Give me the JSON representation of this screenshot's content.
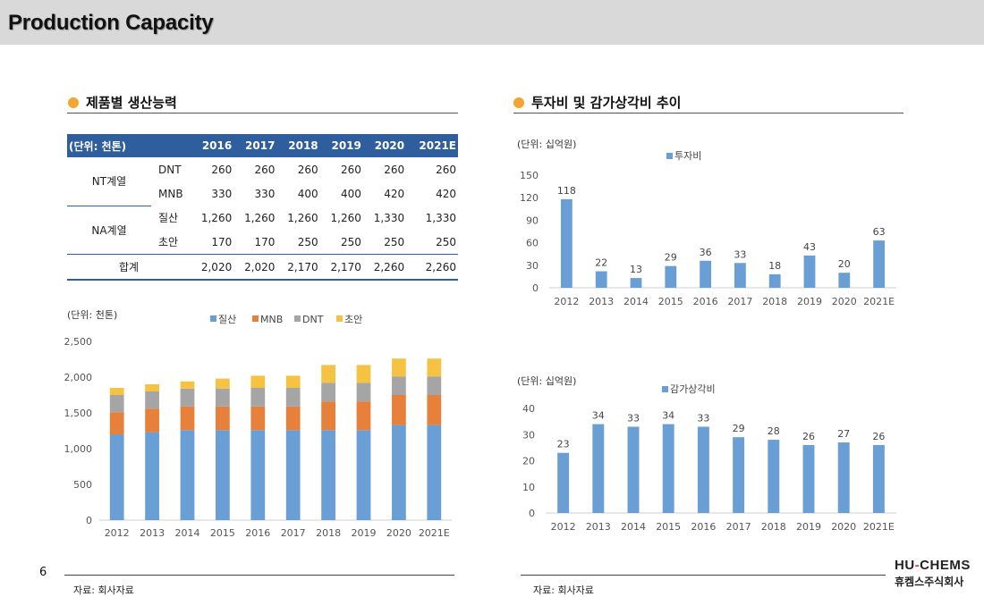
{
  "page": {
    "title": "Production Capacity",
    "page_number": "6",
    "source_left": "자료: 회사자료",
    "source_right": "자료: 회사자료",
    "logo_en_a": "HU",
    "logo_en_dash": "-",
    "logo_en_b": "CHEMS",
    "logo_ko": "휴켐스주식회사"
  },
  "left_section": {
    "heading": "제품별 생산능력"
  },
  "right_section": {
    "heading": "투자비 및 감가상각비 추이"
  },
  "colors": {
    "blue": "#6a9fd6",
    "orange": "#e7803a",
    "gray": "#a5a5a5",
    "yellow": "#f5c242",
    "header": "#2f5e9e",
    "bullet": "#f2a531"
  },
  "capacity_table": {
    "unit": "(단위: 천톤)",
    "years": [
      "2016",
      "2017",
      "2018",
      "2019",
      "2020",
      "2021E"
    ],
    "groups": [
      {
        "name": "NT계열",
        "rows": [
          {
            "product": "DNT",
            "values": [
              "260",
              "260",
              "260",
              "260",
              "260",
              "260"
            ]
          },
          {
            "product": "MNB",
            "values": [
              "330",
              "330",
              "400",
              "400",
              "420",
              "420"
            ]
          }
        ]
      },
      {
        "name": "NA계열",
        "rows": [
          {
            "product": "질산",
            "values": [
              "1,260",
              "1,260",
              "1,260",
              "1,260",
              "1,330",
              "1,330"
            ]
          },
          {
            "product": "초안",
            "values": [
              "170",
              "170",
              "250",
              "250",
              "250",
              "250"
            ]
          }
        ]
      }
    ],
    "total": {
      "label": "합계",
      "values": [
        "2,020",
        "2,020",
        "2,170",
        "2,170",
        "2,260",
        "2,260"
      ]
    }
  },
  "chart_data": [
    {
      "type": "bar",
      "stacked": true,
      "unit": "(단위: 천톤)",
      "categories": [
        "2012",
        "2013",
        "2014",
        "2015",
        "2016",
        "2017",
        "2018",
        "2019",
        "2020",
        "2021E"
      ],
      "series": [
        {
          "name": "질산",
          "color": "#6a9fd6",
          "values": [
            1200,
            1230,
            1260,
            1260,
            1260,
            1260,
            1260,
            1260,
            1330,
            1330
          ]
        },
        {
          "name": "MNB",
          "color": "#e7803a",
          "values": [
            310,
            330,
            330,
            330,
            330,
            330,
            400,
            400,
            420,
            420
          ]
        },
        {
          "name": "DNT",
          "color": "#a5a5a5",
          "values": [
            240,
            240,
            250,
            250,
            260,
            260,
            260,
            260,
            260,
            260
          ]
        },
        {
          "name": "초안",
          "color": "#f5c242",
          "values": [
            100,
            100,
            100,
            140,
            170,
            170,
            250,
            250,
            250,
            250
          ]
        }
      ],
      "y_ticks": [
        "0",
        "500",
        "1,000",
        "1,500",
        "2,000",
        "2,500"
      ],
      "ylim": [
        0,
        2500
      ],
      "legend": "top"
    },
    {
      "type": "bar",
      "unit": "(단위: 십억원)",
      "legend_label": "투자비",
      "color": "#6a9fd6",
      "categories": [
        "2012",
        "2013",
        "2014",
        "2015",
        "2016",
        "2017",
        "2018",
        "2019",
        "2020",
        "2021E"
      ],
      "values": [
        118,
        22,
        13,
        29,
        36,
        33,
        18,
        43,
        20,
        63
      ],
      "labels": [
        "118",
        "22",
        "13",
        "29",
        "36",
        "33",
        "18",
        "43",
        "20",
        "63"
      ],
      "y_ticks": [
        "0",
        "30",
        "60",
        "90",
        "120",
        "150"
      ],
      "ylim": [
        0,
        150
      ]
    },
    {
      "type": "bar",
      "unit": "(단위: 십억원)",
      "legend_label": "감가상각비",
      "color": "#6a9fd6",
      "categories": [
        "2012",
        "2013",
        "2014",
        "2015",
        "2016",
        "2017",
        "2018",
        "2019",
        "2020",
        "2021E"
      ],
      "values": [
        23,
        34,
        33,
        34,
        33,
        29,
        28,
        26,
        27,
        26
      ],
      "labels": [
        "23",
        "34",
        "33",
        "34",
        "33",
        "29",
        "28",
        "26",
        "27",
        "26"
      ],
      "y_ticks": [
        "0",
        "10",
        "20",
        "30",
        "40"
      ],
      "ylim": [
        0,
        40
      ]
    }
  ]
}
